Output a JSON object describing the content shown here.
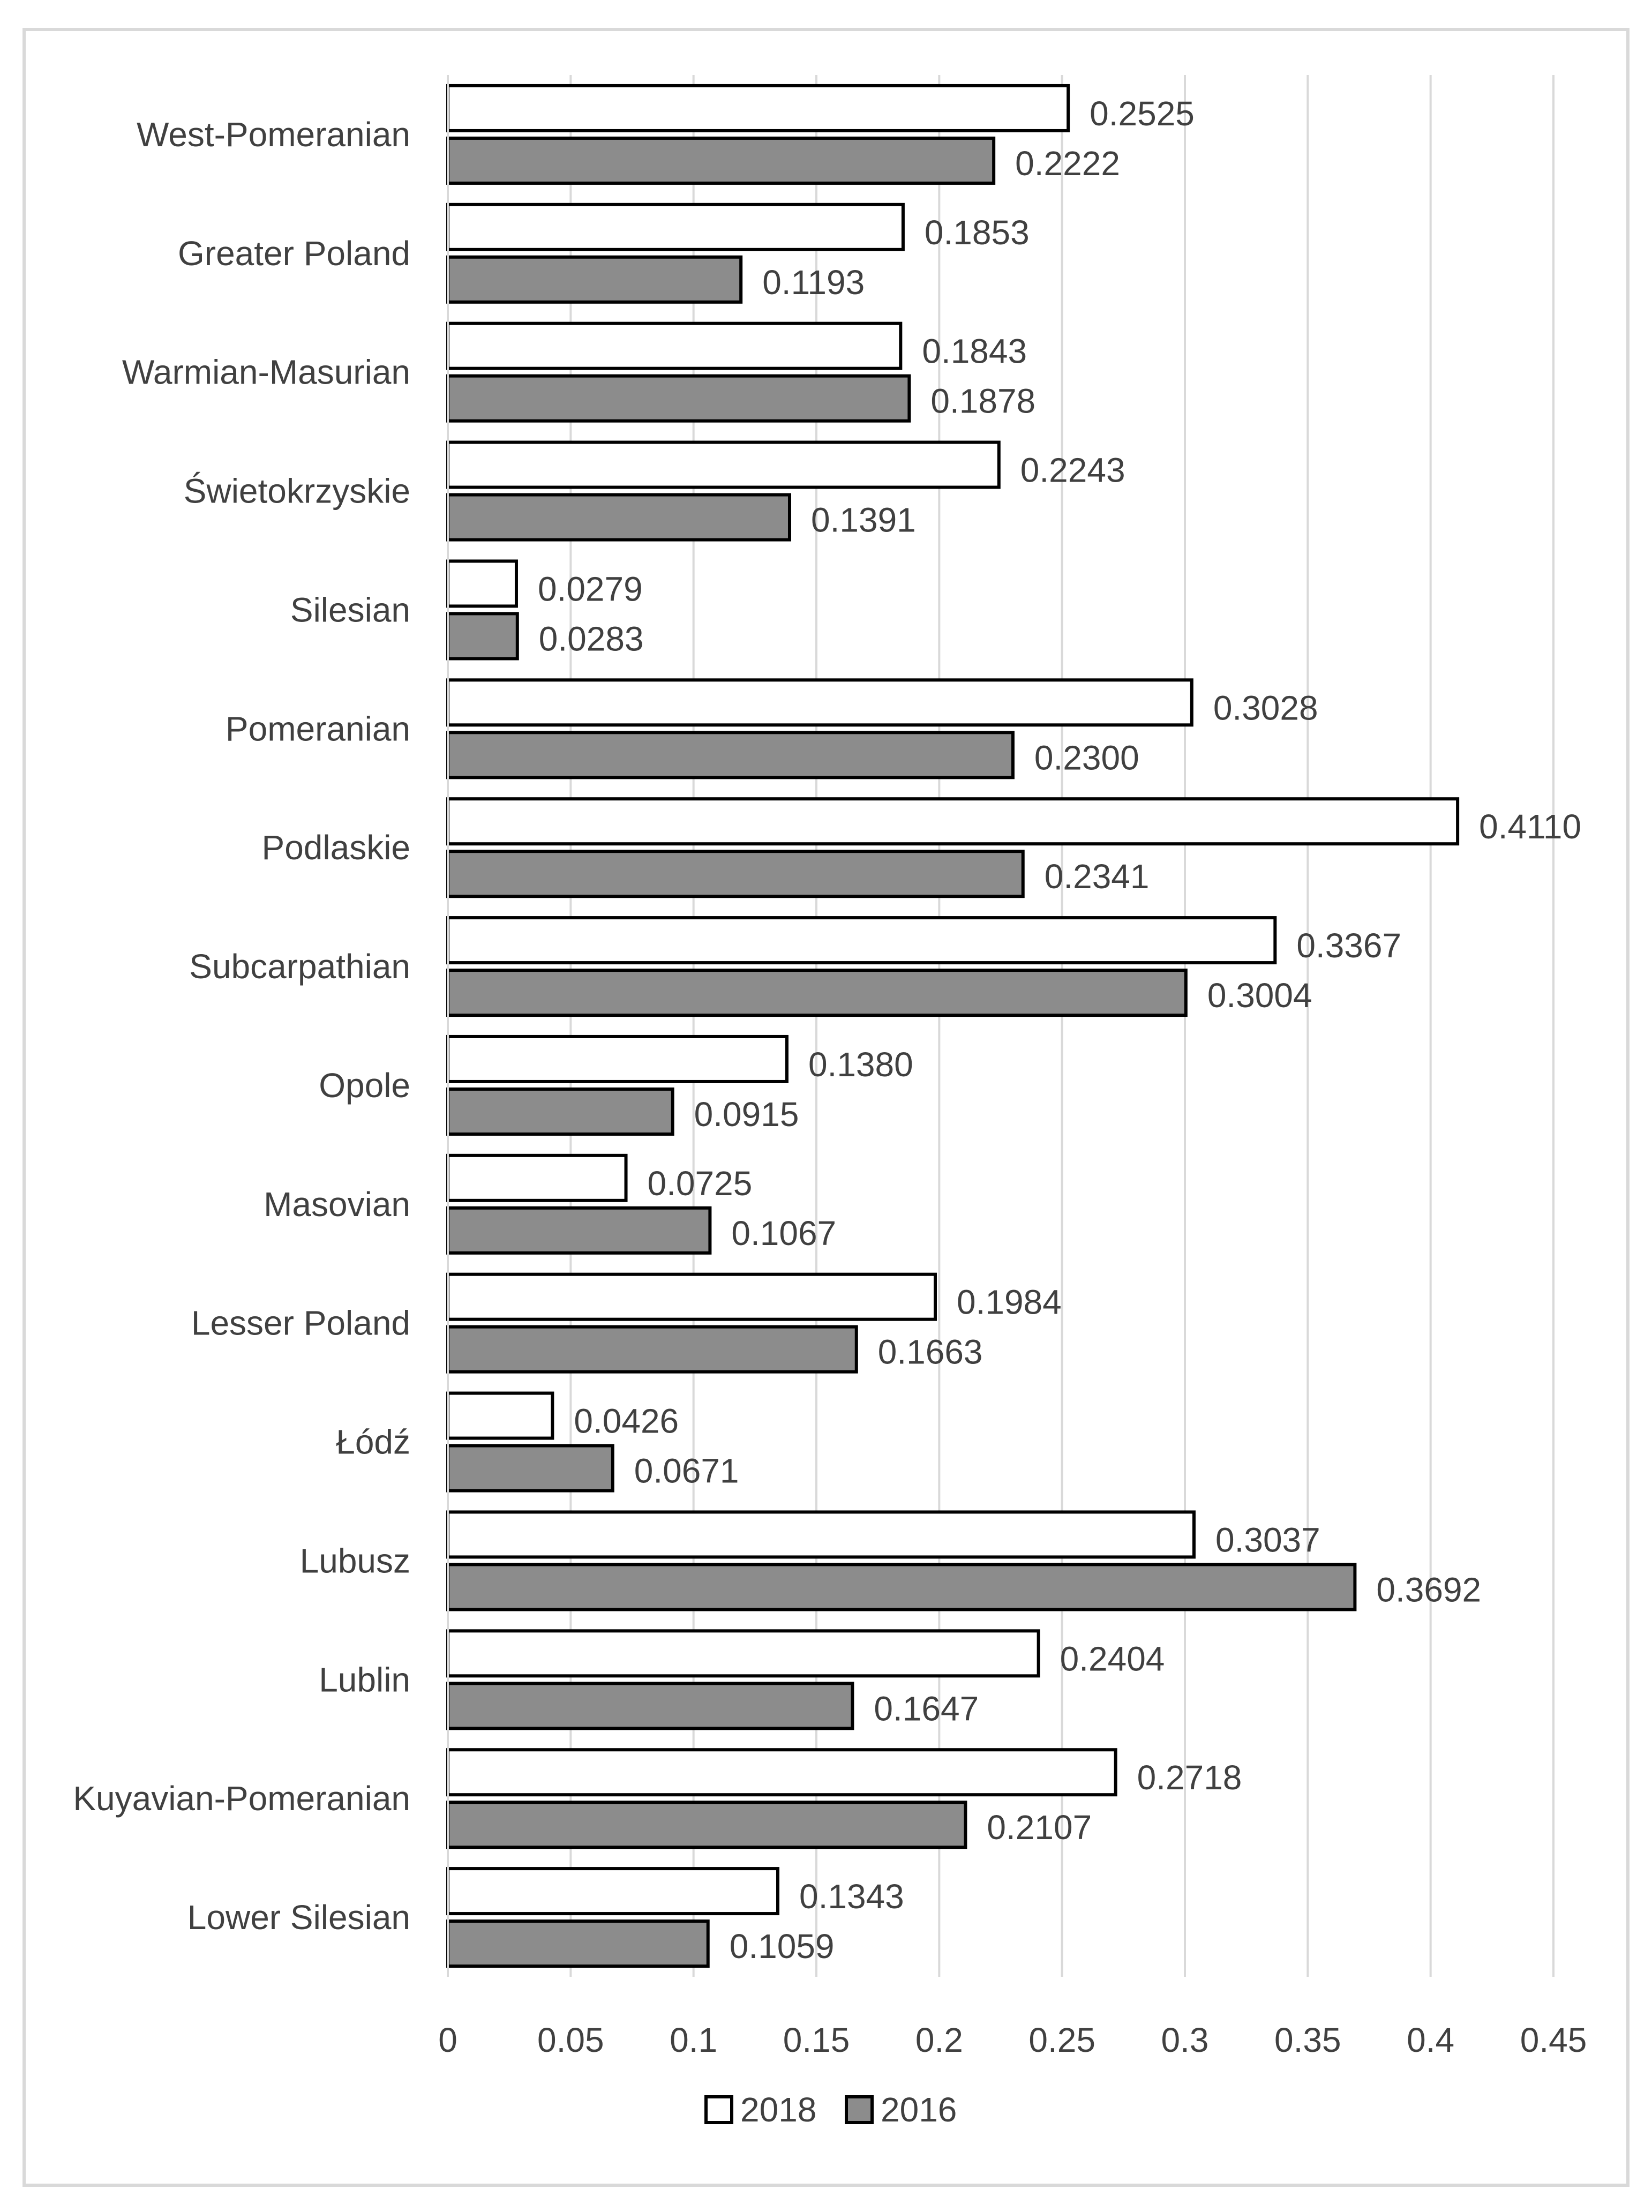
{
  "chart_data": {
    "type": "bar",
    "orientation": "horizontal",
    "title": "",
    "xlabel": "",
    "ylabel": "",
    "xlim": [
      0,
      0.45
    ],
    "ticks": [
      0,
      0.05,
      0.1,
      0.15,
      0.2,
      0.25,
      0.3,
      0.35,
      0.4,
      0.45
    ],
    "tick_labels": [
      "0",
      "0.05",
      "0.1",
      "0.15",
      "0.2",
      "0.25",
      "0.3",
      "0.35",
      "0.4",
      "0.45"
    ],
    "grid": true,
    "legend_position": "bottom",
    "categories": [
      "West-Pomeranian",
      "Greater Poland",
      "Warmian-Masurian",
      "Świetokrzyskie",
      "Silesian",
      "Pomeranian",
      "Podlaskie",
      "Subcarpathian",
      "Opole",
      "Masovian",
      "Lesser Poland",
      "Łódź",
      "Lubusz",
      "Lublin",
      "Kuyavian-Pomeranian",
      "Lower Silesian"
    ],
    "series": [
      {
        "name": "2018",
        "color": "#ffffff",
        "values": [
          0.2525,
          0.1853,
          0.1843,
          0.2243,
          0.0279,
          0.3028,
          0.411,
          0.3367,
          0.138,
          0.0725,
          0.1984,
          0.0426,
          0.3037,
          0.2404,
          0.2718,
          0.1343
        ],
        "labels": [
          "0.2525",
          "0.1853",
          "0.1843",
          "0.2243",
          "0.0279",
          "0.3028",
          "0.4110",
          "0.3367",
          "0.1380",
          "0.0725",
          "0.1984",
          "0.0426",
          "0.3037",
          "0.2404",
          "0.2718",
          "0.1343"
        ]
      },
      {
        "name": "2016",
        "color": "#8c8c8c",
        "values": [
          0.2222,
          0.1193,
          0.1878,
          0.1391,
          0.0283,
          0.23,
          0.2341,
          0.3004,
          0.0915,
          0.1067,
          0.1663,
          0.0671,
          0.3692,
          0.1647,
          0.2107,
          0.1059
        ],
        "labels": [
          "0.2222",
          "0.1193",
          "0.1878",
          "0.1391",
          "0.0283",
          "0.2300",
          "0.2341",
          "0.3004",
          "0.0915",
          "0.1067",
          "0.1663",
          "0.0671",
          "0.3692",
          "0.1647",
          "0.2107",
          "0.1059"
        ]
      }
    ]
  }
}
